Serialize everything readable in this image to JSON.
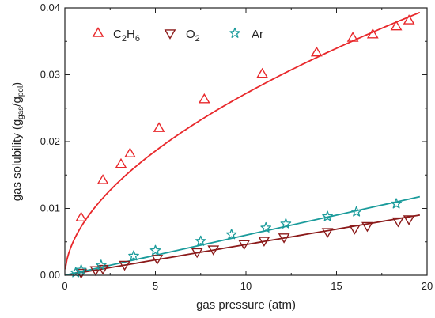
{
  "chart_data": {
    "type": "scatter",
    "xlabel": "gas pressure (atm)",
    "ylabel_parts": {
      "base": "gas solubility (g",
      "sub1": "gas",
      "mid": "/g",
      "sub2": "pol",
      "end": ")"
    },
    "xlim": [
      0,
      20
    ],
    "ylim": [
      0,
      0.04
    ],
    "xticks": [
      0,
      5,
      10,
      15,
      20
    ],
    "yticks": [
      0.0,
      0.01,
      0.02,
      0.03,
      0.04
    ],
    "ytick_labels": [
      "0.00",
      "0.01",
      "0.02",
      "0.03",
      "0.04"
    ],
    "grid": false,
    "legend_position": "top-left",
    "series": [
      {
        "name_parts": {
          "base1": "C",
          "sub1": "2",
          "base2": "H",
          "sub2": "6"
        },
        "marker": "triangle-up-open",
        "color": "#e8282b",
        "x": [
          0.9,
          2.1,
          3.1,
          3.6,
          5.2,
          7.7,
          10.9,
          13.9,
          15.9,
          17.0,
          18.3,
          19.0
        ],
        "y": [
          0.0086,
          0.0142,
          0.0166,
          0.0182,
          0.022,
          0.0263,
          0.0301,
          0.0333,
          0.0355,
          0.036,
          0.0372,
          0.0381
        ],
        "fit": {
          "type": "power",
          "a": 0.0077,
          "b": 0.548
        }
      },
      {
        "name_parts": {
          "base1": "O",
          "sub1": "2"
        },
        "marker": "triangle-down-open",
        "color": "#8b1a1a",
        "x": [
          0.9,
          1.7,
          2.1,
          3.3,
          5.1,
          7.3,
          8.2,
          9.9,
          11.0,
          12.1,
          14.5,
          16.0,
          16.7,
          18.4,
          19.0
        ],
        "y": [
          0.0004,
          0.0008,
          0.001,
          0.0016,
          0.0025,
          0.0035,
          0.0039,
          0.0047,
          0.0052,
          0.0057,
          0.0065,
          0.007,
          0.0074,
          0.0081,
          0.0084
        ],
        "fit": {
          "type": "linear",
          "slope": 0.00046,
          "intercept": 0.0
        }
      },
      {
        "name": "Ar",
        "marker": "star",
        "color": "#1a9b9b",
        "x": [
          0.6,
          0.9,
          2.0,
          3.8,
          5.0,
          7.5,
          9.2,
          11.1,
          12.2,
          14.5,
          16.1,
          18.3
        ],
        "y": [
          0.0004,
          0.0008,
          0.0015,
          0.0029,
          0.0037,
          0.0051,
          0.0061,
          0.0071,
          0.0077,
          0.0088,
          0.0095,
          0.0107
        ],
        "fit": {
          "type": "linear",
          "slope": 0.0006,
          "intercept": 0.0
        }
      }
    ]
  }
}
